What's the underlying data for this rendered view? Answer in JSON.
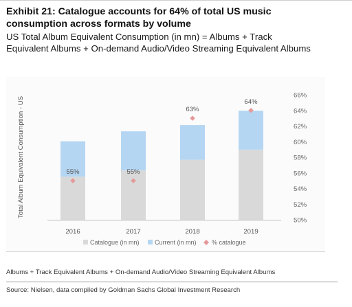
{
  "exhibit": {
    "title": "Exhibit 21: Catalogue accounts for 64% of total US music consumption across formats by volume",
    "subtitle": "US Total Album Equivalent Consumption (in mn) = Albums + Track Equivalent Albums + On-demand Audio/Video Streaming Equivalent Albums"
  },
  "chart_data": {
    "type": "bar",
    "stacked": true,
    "categories": [
      "2016",
      "2017",
      "2018",
      "2019"
    ],
    "series": [
      {
        "name": "Catalogue (in mn)",
        "axis": "left",
        "color": "#d9d9d9",
        "values": [
          310,
          355,
          432,
          505
        ]
      },
      {
        "name": "Current (in mn)",
        "axis": "left",
        "color": "#b5d6f2",
        "values": [
          255,
          282,
          250,
          280
        ]
      },
      {
        "name": "% catalogue",
        "axis": "right",
        "color": "#e59a9a",
        "marker": "diamond",
        "values": [
          55,
          55,
          63,
          64
        ],
        "labels": [
          "55%",
          "55%",
          "63%",
          "64%"
        ]
      }
    ],
    "ylabel": "Total Album Equivalent Consumption - US",
    "ylim": [
      0,
      900
    ],
    "y2ticks": [
      "50%",
      "52%",
      "54%",
      "56%",
      "58%",
      "60%",
      "62%",
      "64%",
      "66%"
    ],
    "y2lim": [
      50,
      66
    ],
    "grid": false,
    "legend_position": "bottom"
  },
  "footnote": "Albums + Track Equivalent Albums + On-demand Audio/Video Streaming Equivalent Albums",
  "source": "Source: Nielsen, data compiled by Goldman Sachs Global Investment Research"
}
